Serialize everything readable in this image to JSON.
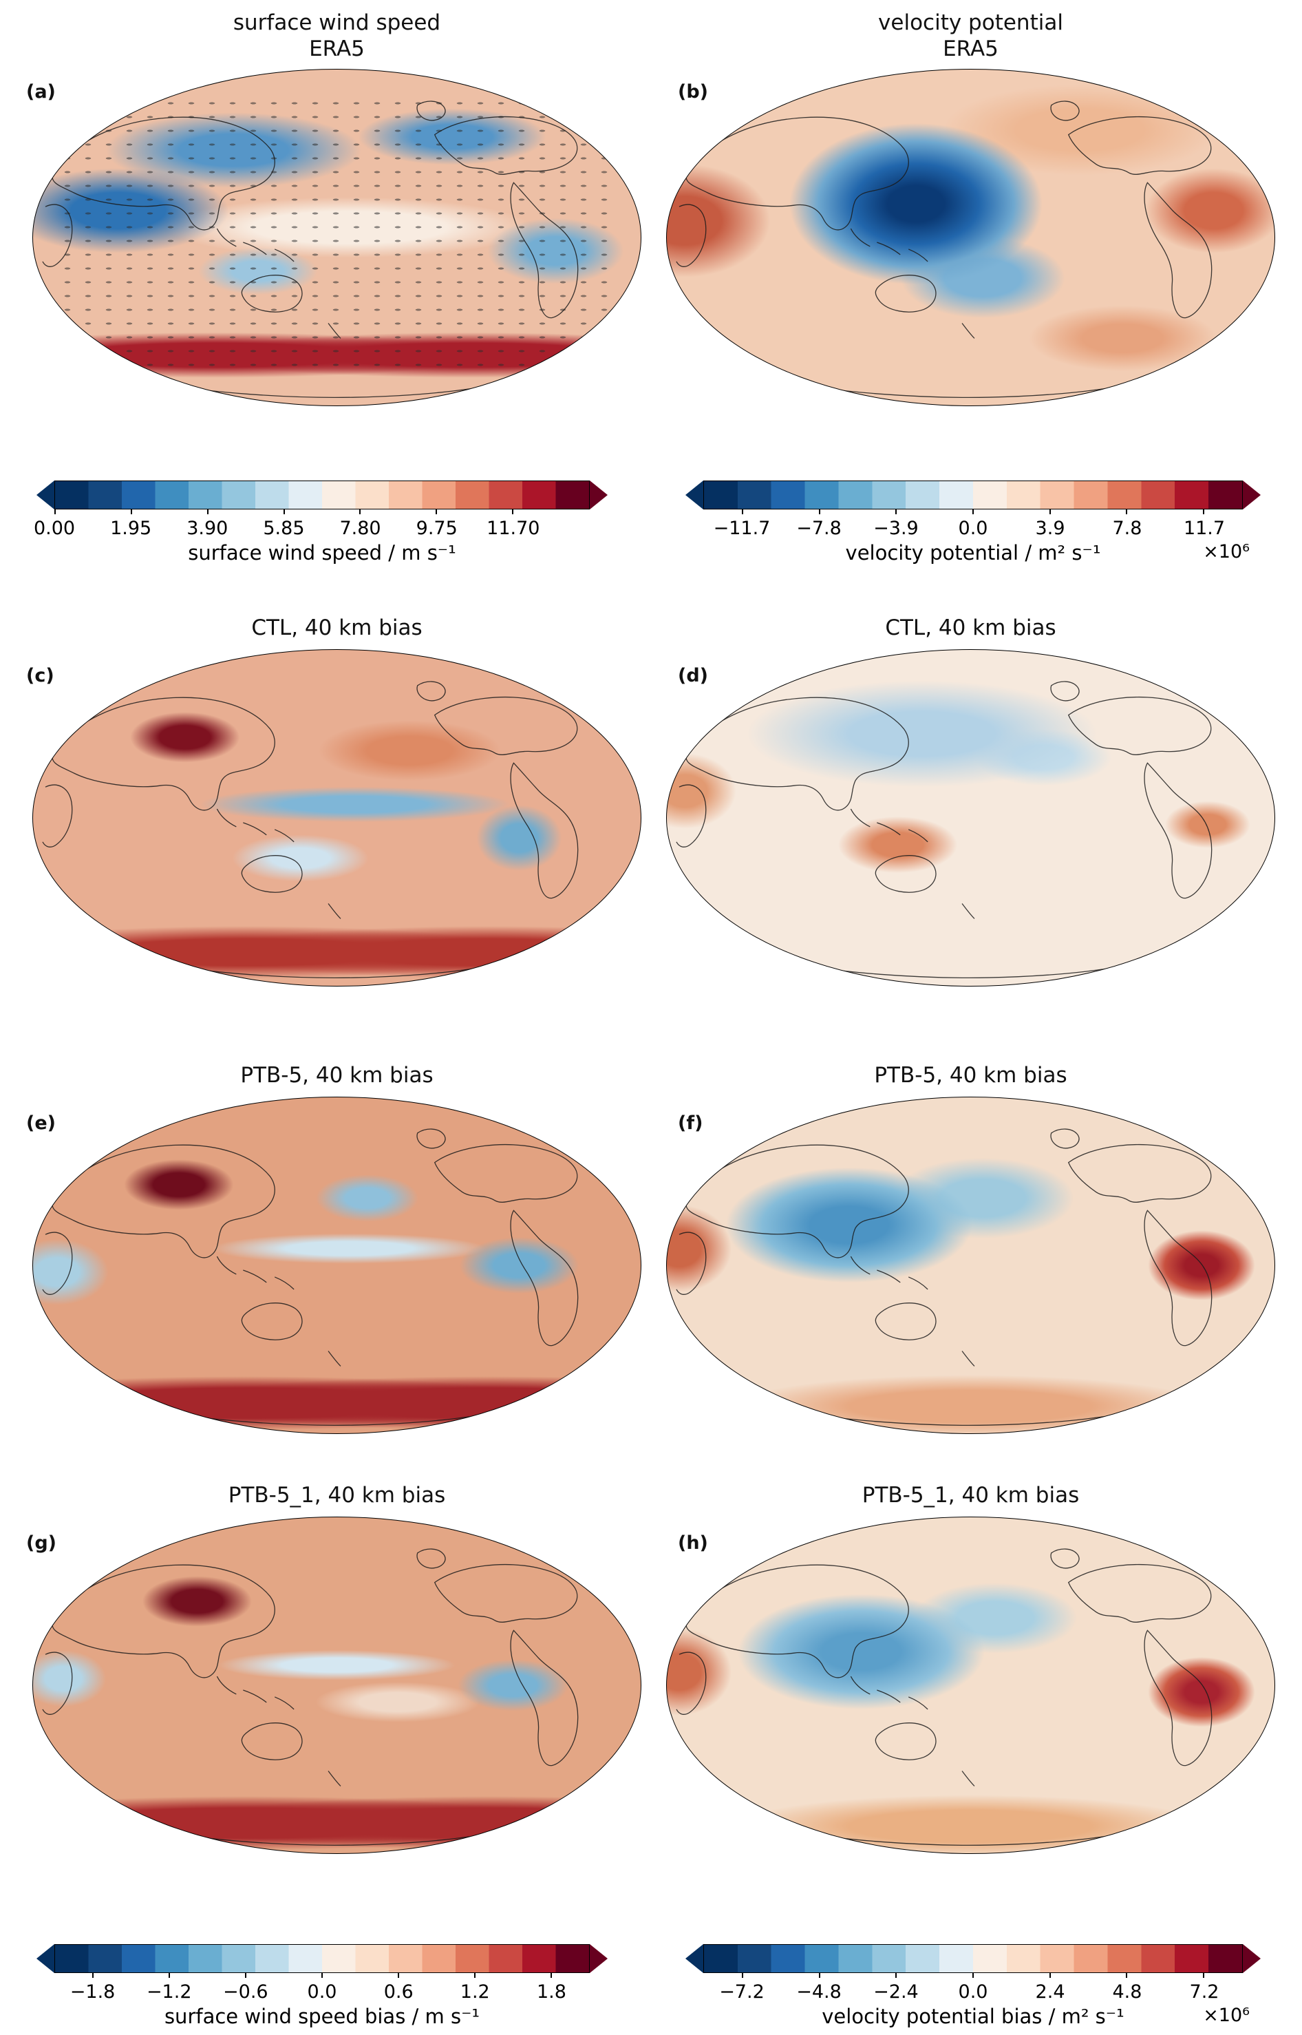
{
  "figure": {
    "background": "#ffffff",
    "description": "Eight-panel Mollweide map figure comparing ERA5 surface wind speed and velocity potential with 40 km model biases (CTL, PTB-5, PTB-5_1)."
  },
  "colormap": [
    "#053061",
    "#14477e",
    "#2166ac",
    "#3f8ec0",
    "#6aaed1",
    "#94c6de",
    "#bedceb",
    "#e3eef5",
    "#faeee4",
    "#fbdfca",
    "#f8c3a7",
    "#f0a181",
    "#e0765a",
    "#cb4942",
    "#ab1529",
    "#67001f"
  ],
  "panels": [
    {
      "id": "a",
      "label": "(a)",
      "title_lines": [
        "surface wind speed",
        "ERA5"
      ]
    },
    {
      "id": "b",
      "label": "(b)",
      "title_lines": [
        "velocity potential",
        "ERA5"
      ]
    },
    {
      "id": "c",
      "label": "(c)",
      "title_lines": [
        "CTL, 40 km bias"
      ]
    },
    {
      "id": "d",
      "label": "(d)",
      "title_lines": [
        "CTL, 40 km bias"
      ]
    },
    {
      "id": "e",
      "label": "(e)",
      "title_lines": [
        "PTB-5, 40 km bias"
      ]
    },
    {
      "id": "f",
      "label": "(f)",
      "title_lines": [
        "PTB-5, 40 km bias"
      ]
    },
    {
      "id": "g",
      "label": "(g)",
      "title_lines": [
        "PTB-5_1, 40 km bias"
      ]
    },
    {
      "id": "h",
      "label": "(h)",
      "title_lines": [
        "PTB-5_1, 40 km bias"
      ]
    }
  ],
  "colorbars": [
    {
      "id": "wind_speed",
      "ticks": [
        "0.00",
        "1.95",
        "3.90",
        "5.85",
        "7.80",
        "9.75",
        "11.70"
      ],
      "tick_positions": [
        0,
        0.1429,
        0.2857,
        0.4286,
        0.5714,
        0.7143,
        0.8571
      ],
      "label": "surface wind speed / m s⁻¹",
      "multiplier": ""
    },
    {
      "id": "velocity_potential",
      "ticks": [
        "−11.7",
        "−7.8",
        "−3.9",
        "0.0",
        "3.9",
        "7.8",
        "11.7"
      ],
      "tick_positions": [
        0.0714,
        0.2143,
        0.3571,
        0.5,
        0.6429,
        0.7857,
        0.9286
      ],
      "label": "velocity potential / m² s⁻¹",
      "multiplier": "×10⁶"
    },
    {
      "id": "wind_speed_bias",
      "ticks": [
        "−1.8",
        "−1.2",
        "−0.6",
        "0.0",
        "0.6",
        "1.2",
        "1.8"
      ],
      "tick_positions": [
        0.0714,
        0.2143,
        0.3571,
        0.5,
        0.6429,
        0.7857,
        0.9286
      ],
      "label": "surface wind speed bias / m s⁻¹",
      "multiplier": ""
    },
    {
      "id": "velocity_potential_bias",
      "ticks": [
        "−7.2",
        "−4.8",
        "−2.4",
        "0.0",
        "2.4",
        "4.8",
        "7.2"
      ],
      "tick_positions": [
        0.0714,
        0.2143,
        0.3571,
        0.5,
        0.6429,
        0.7857,
        0.9286
      ],
      "label": "velocity potential bias / m² s⁻¹",
      "multiplier": "×10⁶"
    }
  ],
  "chart_data": [
    {
      "panel": "a",
      "type": "heatmap",
      "projection": "mollweide",
      "title": "surface wind speed ERA5",
      "variable": "surface wind speed",
      "units": "m s⁻¹",
      "colorbar_ticks": [
        0.0,
        1.95,
        3.9,
        5.85,
        7.8,
        9.75,
        11.7
      ],
      "value_range": [
        0,
        13.65
      ],
      "legend_position": "bottom",
      "description": "Low wind speed (blue) over continents, moderate (light red) over tropical oceans, maxima (dark red) over the Southern Ocean storm track; overlaid quiver arrows show mean surface wind vectors (easterly trades, mid-latitude westerlies)."
    },
    {
      "panel": "b",
      "type": "heatmap",
      "projection": "mollweide",
      "title": "velocity potential ERA5",
      "variable": "velocity potential",
      "units": "m² s⁻¹",
      "scale_factor": "×10⁶",
      "colorbar_ticks": [
        -11.7,
        -7.8,
        -3.9,
        0.0,
        3.9,
        7.8,
        11.7
      ],
      "value_range": [
        -13.65,
        13.65
      ],
      "description": "Strong negative center (dark blue) over the Maritime Continent / western Pacific warm pool; positive values (red) over the Atlantic-Africa sector and eastern Pacific / South America."
    },
    {
      "panel": "c",
      "type": "heatmap",
      "projection": "mollweide",
      "title": "CTL, 40 km bias",
      "variable": "surface wind speed bias",
      "units": "m s⁻¹",
      "colorbar_ticks": [
        -1.8,
        -1.2,
        -0.6,
        0.0,
        0.6,
        1.2,
        1.8
      ],
      "value_range": [
        -2.1,
        2.1
      ],
      "description": "Widespread positive wind-speed bias (red) over land and the Southern Ocean, strongest over the Tibetan Plateau; negative bias (blue) along the equatorial Pacific band and eastern ocean margins/Andes."
    },
    {
      "panel": "d",
      "type": "heatmap",
      "projection": "mollweide",
      "title": "CTL, 40 km bias",
      "variable": "velocity potential bias",
      "units": "m² s⁻¹",
      "scale_factor": "×10⁶",
      "colorbar_ticks": [
        -7.2,
        -4.8,
        -2.4,
        0.0,
        2.4,
        4.8,
        7.2
      ],
      "value_range": [
        -8.4,
        8.4
      ],
      "description": "Weak negative bias (light blue) across the northern mid-latitudes; positive bias (orange) centered near Australia / Maritime Continent and over South America."
    },
    {
      "panel": "e",
      "type": "heatmap",
      "projection": "mollweide",
      "title": "PTB-5, 40 km bias",
      "variable": "surface wind speed bias",
      "units": "m s⁻¹",
      "colorbar_ticks": [
        -1.8,
        -1.2,
        -0.6,
        0.0,
        0.6,
        1.2,
        1.8
      ],
      "value_range": [
        -2.1,
        2.1
      ],
      "description": "Stronger overall positive bias (dark red) than CTL, especially over continents and the Southern Ocean; negative bias (blue) over interior South America and parts of the North Pacific."
    },
    {
      "panel": "f",
      "type": "heatmap",
      "projection": "mollweide",
      "title": "PTB-5, 40 km bias",
      "variable": "velocity potential bias",
      "units": "m² s⁻¹",
      "scale_factor": "×10⁶",
      "colorbar_ticks": [
        -7.2,
        -4.8,
        -2.4,
        0.0,
        2.4,
        4.8,
        7.2
      ],
      "value_range": [
        -8.4,
        8.4
      ],
      "description": "Negative bias (blue) over Asia / Indian Ocean sector; pronounced positive bias (dark red) over South America and along the Atlantic edge."
    },
    {
      "panel": "g",
      "type": "heatmap",
      "projection": "mollweide",
      "title": "PTB-5_1, 40 km bias",
      "variable": "surface wind speed bias",
      "units": "m s⁻¹",
      "colorbar_ticks": [
        -1.8,
        -1.2,
        -0.6,
        0.0,
        0.6,
        1.2,
        1.8
      ],
      "value_range": [
        -2.1,
        2.1
      ],
      "description": "Pattern similar to PTB-5: strong positive bias over the Tibetan Plateau and Southern Ocean, negative bias over interior South America and equatorial Pacific patches."
    },
    {
      "panel": "h",
      "type": "heatmap",
      "projection": "mollweide",
      "title": "PTB-5_1, 40 km bias",
      "variable": "velocity potential bias",
      "units": "m² s⁻¹",
      "scale_factor": "×10⁶",
      "colorbar_ticks": [
        -7.2,
        -4.8,
        -2.4,
        0.0,
        2.4,
        4.8,
        7.2
      ],
      "value_range": [
        -8.4,
        8.4
      ],
      "description": "Similar to PTB-5: negative bias (blue) over Asia / Indian Ocean, positive bias (red) over South America, slightly weaker amplitude."
    }
  ]
}
